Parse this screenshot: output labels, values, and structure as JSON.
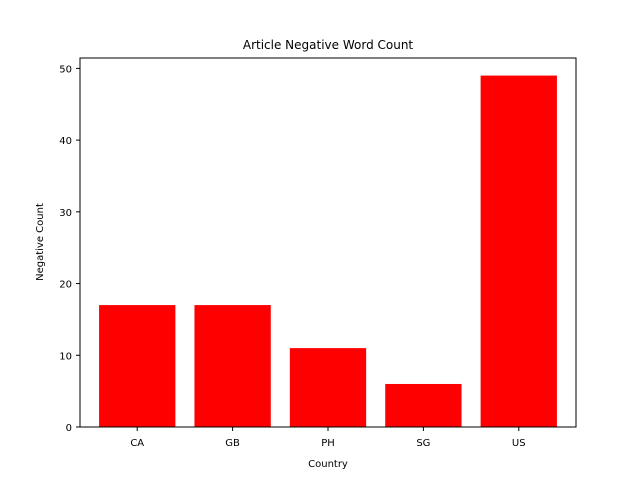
{
  "chart_data": {
    "type": "bar",
    "title": "Article Negative Word Count",
    "xlabel": "Country",
    "ylabel": "Negative Count",
    "categories": [
      "CA",
      "GB",
      "PH",
      "SG",
      "US"
    ],
    "values": [
      17,
      17,
      11,
      6,
      49
    ],
    "ylim": [
      0,
      51.45
    ],
    "yticks": [
      0,
      10,
      20,
      30,
      40,
      50
    ],
    "grid": false,
    "bar_color": "#ff0000"
  }
}
